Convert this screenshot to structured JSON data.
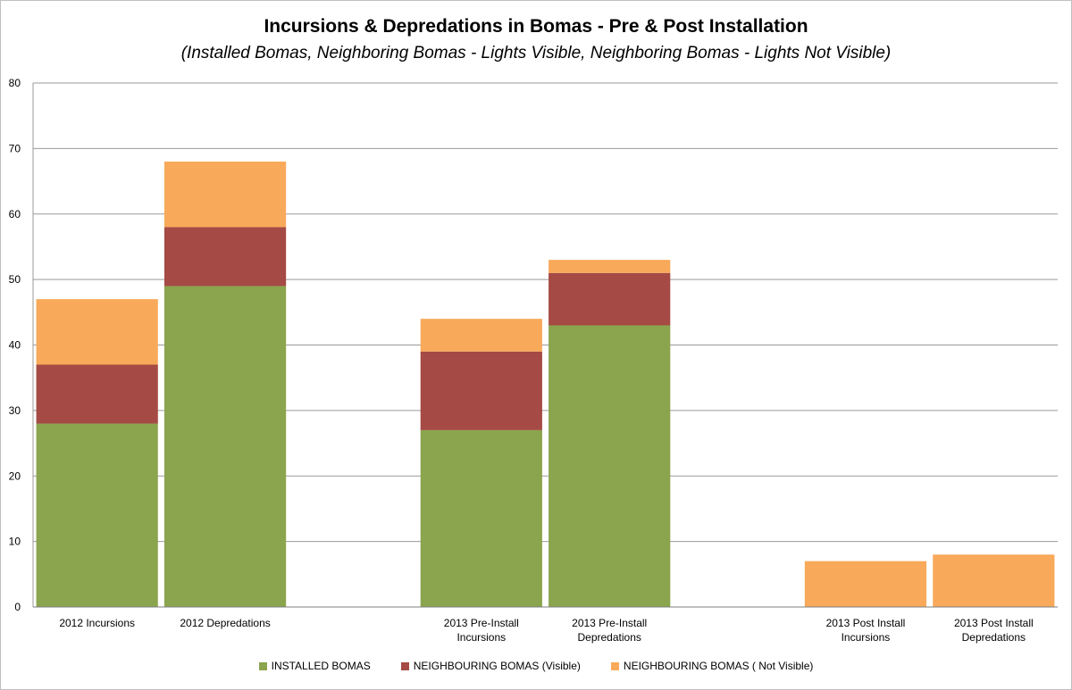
{
  "chart_data": {
    "type": "bar",
    "stacked": true,
    "title": "Incursions & Depredations in Bomas - Pre & Post Installation",
    "subtitle": "(Installed Bomas, Neighboring Bomas - Lights Visible, Neighboring Bomas - Lights Not Visible)",
    "categories": [
      "2012 Incursions",
      "2012 Depredations",
      "",
      "2013 Pre-Install Incursions",
      "2013 Pre-Install Depredations",
      "",
      "2013 Post Install Incursions",
      "2013 Post Install Depredations"
    ],
    "category_lines": [
      [
        "2012 Incursions"
      ],
      [
        "2012 Depredations"
      ],
      [],
      [
        "2013 Pre-Install",
        "Incursions"
      ],
      [
        "2013 Pre-Install",
        "Depredations"
      ],
      [],
      [
        "2013 Post Install",
        "Incursions"
      ],
      [
        "2013 Post Install",
        "Depredations"
      ]
    ],
    "series": [
      {
        "name": "INSTALLED BOMAS",
        "color": "#8aa54d",
        "values": [
          28,
          49,
          null,
          27,
          43,
          null,
          0,
          0
        ]
      },
      {
        "name": "NEIGHBOURING BOMAS (Visible)",
        "color": "#a54a44",
        "values": [
          9,
          9,
          null,
          12,
          8,
          null,
          0,
          0
        ]
      },
      {
        "name": "NEIGHBOURING BOMAS ( Not Visible)",
        "color": "#f8a95a",
        "values": [
          10,
          10,
          null,
          5,
          2,
          null,
          7,
          8
        ]
      }
    ],
    "ylim": [
      0,
      80
    ],
    "yticks": [
      "0",
      "10",
      "20",
      "30",
      "40",
      "50",
      "60",
      "70",
      "80"
    ],
    "grid": true,
    "legend_position": "bottom"
  }
}
